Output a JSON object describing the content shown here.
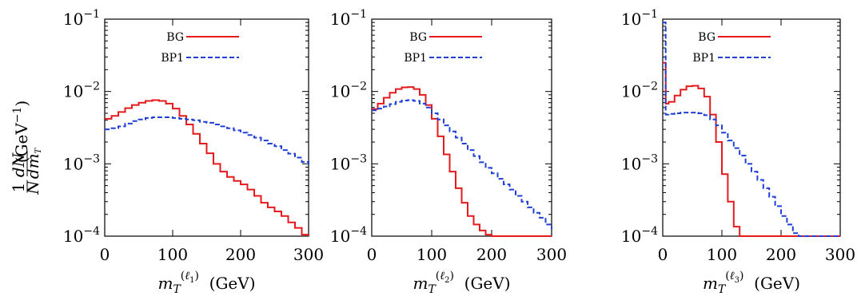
{
  "colors": {
    "BG": "#e41a1c",
    "BP1": "#1f3fd6",
    "axis": "#000000"
  },
  "ylabel": "1/N dN/dm_T (GeV−1)",
  "ytick_labels": [
    "10−4",
    "10−3",
    "10−2",
    "10−1"
  ],
  "chart_data": [
    {
      "type": "line",
      "step": true,
      "xlabel": "m_T^(ℓ1) (GeV)",
      "xlabel_base": "m",
      "xlabel_sub": "T",
      "xlabel_sup_var": "ℓ",
      "xlabel_sup_idx": "1",
      "xlabel_unit": "(GeV)",
      "xlim": [
        0,
        300
      ],
      "ylim": [
        0.0001,
        0.1
      ],
      "yscale": "log",
      "xticks": [
        "0",
        "100",
        "200",
        "300"
      ],
      "legend": "top-right",
      "series": [
        {
          "name": "BG",
          "x": [
            0,
            10,
            20,
            30,
            40,
            50,
            60,
            70,
            80,
            90,
            100,
            110,
            120,
            130,
            140,
            150,
            160,
            170,
            180,
            190,
            200,
            210,
            220,
            230,
            240,
            250,
            260,
            270,
            280,
            290,
            300
          ],
          "y": [
            0.0042,
            0.0046,
            0.0052,
            0.0059,
            0.0065,
            0.007,
            0.0074,
            0.0076,
            0.0074,
            0.0068,
            0.0058,
            0.0046,
            0.0035,
            0.0026,
            0.0019,
            0.0014,
            0.001,
            0.00078,
            0.00066,
            0.00058,
            0.00052,
            0.00044,
            0.00036,
            0.00029,
            0.00025,
            0.00022,
            0.00019,
            0.000155,
            0.00013,
            0.000105,
            0.0001
          ]
        },
        {
          "name": "BP1",
          "x": [
            0,
            10,
            20,
            30,
            40,
            50,
            60,
            70,
            80,
            90,
            100,
            110,
            120,
            130,
            140,
            150,
            160,
            170,
            180,
            190,
            200,
            210,
            220,
            230,
            240,
            250,
            260,
            270,
            280,
            290,
            300
          ],
          "y": [
            0.003,
            0.0031,
            0.0033,
            0.0036,
            0.0039,
            0.0041,
            0.0043,
            0.0044,
            0.0044,
            0.0044,
            0.0043,
            0.0042,
            0.0041,
            0.004,
            0.0038,
            0.0037,
            0.0035,
            0.0033,
            0.0031,
            0.0029,
            0.0027,
            0.0025,
            0.0023,
            0.0021,
            0.0019,
            0.00175,
            0.00155,
            0.00138,
            0.00122,
            0.00106,
            0.00098
          ]
        }
      ]
    },
    {
      "type": "line",
      "step": true,
      "xlabel": "m_T^(ℓ2) (GeV)",
      "xlabel_base": "m",
      "xlabel_sub": "T",
      "xlabel_sup_var": "ℓ",
      "xlabel_sup_idx": "2",
      "xlabel_unit": "(GeV)",
      "xlim": [
        0,
        300
      ],
      "ylim": [
        0.0001,
        0.1
      ],
      "yscale": "log",
      "xticks": [
        "0",
        "100",
        "200",
        "300"
      ],
      "legend": "top-right",
      "series": [
        {
          "name": "BG",
          "x": [
            0,
            10,
            20,
            30,
            40,
            50,
            60,
            70,
            80,
            90,
            100,
            110,
            120,
            130,
            140,
            150,
            160,
            170,
            180,
            190,
            200,
            300
          ],
          "y": [
            0.0057,
            0.0068,
            0.0082,
            0.0096,
            0.0108,
            0.0114,
            0.0115,
            0.0108,
            0.009,
            0.0065,
            0.0042,
            0.0024,
            0.00135,
            0.00078,
            0.00046,
            0.00029,
            0.00019,
            0.000145,
            0.00012,
            0.000105,
            0.0001,
            0.0001
          ]
        },
        {
          "name": "BP1",
          "x": [
            0,
            10,
            20,
            30,
            40,
            50,
            60,
            70,
            80,
            90,
            100,
            110,
            120,
            130,
            140,
            150,
            160,
            170,
            180,
            190,
            200,
            210,
            220,
            230,
            240,
            250,
            260,
            270,
            280,
            290,
            300
          ],
          "y": [
            0.0055,
            0.0058,
            0.0062,
            0.0067,
            0.0072,
            0.0075,
            0.0076,
            0.0074,
            0.0068,
            0.006,
            0.005,
            0.0041,
            0.0034,
            0.0028,
            0.0023,
            0.0019,
            0.00155,
            0.00128,
            0.00105,
            0.00088,
            0.00074,
            0.00062,
            0.00052,
            0.00044,
            0.00036,
            0.0003,
            0.00025,
            0.00021,
            0.00018,
            0.000145,
            0.000125
          ]
        }
      ]
    },
    {
      "type": "line",
      "step": true,
      "xlabel": "m_T^(ℓ3) (GeV)",
      "xlabel_base": "m",
      "xlabel_sub": "T",
      "xlabel_sup_var": "ℓ",
      "xlabel_sup_idx": "3",
      "xlabel_unit": "(GeV)",
      "xlim": [
        0,
        300
      ],
      "ylim": [
        0.0001,
        0.1
      ],
      "yscale": "log",
      "xticks": [
        "0",
        "100",
        "200",
        "300"
      ],
      "legend": "top-right",
      "series": [
        {
          "name": "BG",
          "x": [
            0,
            5,
            10,
            20,
            30,
            40,
            50,
            60,
            70,
            80,
            90,
            100,
            110,
            120,
            130,
            300
          ],
          "y": [
            0.025,
            0.0068,
            0.0072,
            0.0088,
            0.0106,
            0.0118,
            0.012,
            0.011,
            0.0085,
            0.0048,
            0.002,
            0.00072,
            0.0003,
            0.000135,
            0.0001,
            0.0001
          ]
        },
        {
          "name": "BP1",
          "x": [
            0,
            5,
            10,
            20,
            30,
            40,
            50,
            60,
            70,
            80,
            90,
            100,
            110,
            120,
            130,
            140,
            150,
            160,
            170,
            180,
            190,
            200,
            210,
            220,
            230,
            300
          ],
          "y": [
            0.09,
            0.0048,
            0.0049,
            0.005,
            0.0051,
            0.0051,
            0.0051,
            0.005,
            0.0047,
            0.0041,
            0.0034,
            0.0027,
            0.0021,
            0.00165,
            0.0013,
            0.001,
            0.00078,
            0.0006,
            0.00046,
            0.00035,
            0.00026,
            0.00019,
            0.000145,
            0.00011,
            0.0001,
            0.0001
          ]
        }
      ]
    }
  ]
}
